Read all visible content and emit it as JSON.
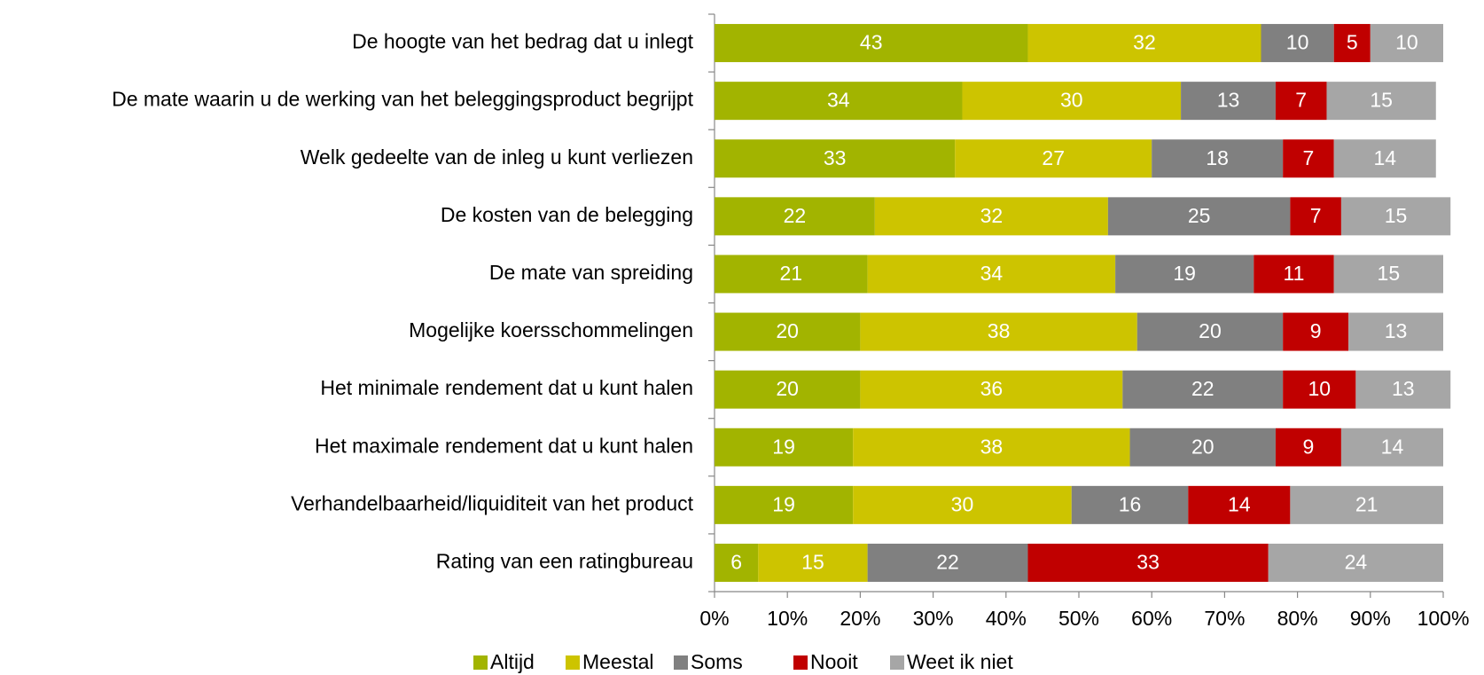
{
  "chart_data": {
    "type": "bar",
    "orientation": "horizontal",
    "stacked": true,
    "categories": [
      "De hoogte van het bedrag dat u inlegt",
      "De mate waarin u de werking van het beleggingsproduct begrijpt",
      "Welk gedeelte van de inleg u kunt verliezen",
      "De kosten van de belegging",
      "De mate van spreiding",
      "Mogelijke koersschommelingen",
      "Het minimale rendement dat u kunt halen",
      "Het maximale rendement dat u kunt halen",
      "Verhandelbaarheid/liquiditeit van het product",
      "Rating van een ratingbureau"
    ],
    "series": [
      {
        "name": "Altijd",
        "color": "#a2b400",
        "values": [
          43,
          34,
          33,
          22,
          21,
          20,
          20,
          19,
          19,
          6
        ]
      },
      {
        "name": "Meestal",
        "color": "#cdc400",
        "values": [
          32,
          30,
          27,
          32,
          34,
          38,
          36,
          38,
          30,
          15
        ]
      },
      {
        "name": "Soms",
        "color": "#808080",
        "values": [
          10,
          13,
          18,
          25,
          19,
          20,
          22,
          20,
          16,
          22
        ]
      },
      {
        "name": "Nooit",
        "color": "#c00000",
        "values": [
          5,
          7,
          7,
          7,
          11,
          9,
          10,
          9,
          14,
          33
        ]
      },
      {
        "name": "Weet ik niet",
        "color": "#a6a6a6",
        "values": [
          10,
          15,
          14,
          15,
          15,
          13,
          13,
          14,
          21,
          24
        ]
      }
    ],
    "xlim": [
      0,
      100
    ],
    "xticks": [
      {
        "value": 0,
        "label": "0%"
      },
      {
        "value": 10,
        "label": "10%"
      },
      {
        "value": 20,
        "label": "20%"
      },
      {
        "value": 30,
        "label": "30%"
      },
      {
        "value": 40,
        "label": "40%"
      },
      {
        "value": 50,
        "label": "50%"
      },
      {
        "value": 60,
        "label": "60%"
      },
      {
        "value": 70,
        "label": "70%"
      },
      {
        "value": 80,
        "label": "80%"
      },
      {
        "value": 90,
        "label": "90%"
      },
      {
        "value": 100,
        "label": "100%"
      }
    ],
    "legend": "bottom"
  }
}
